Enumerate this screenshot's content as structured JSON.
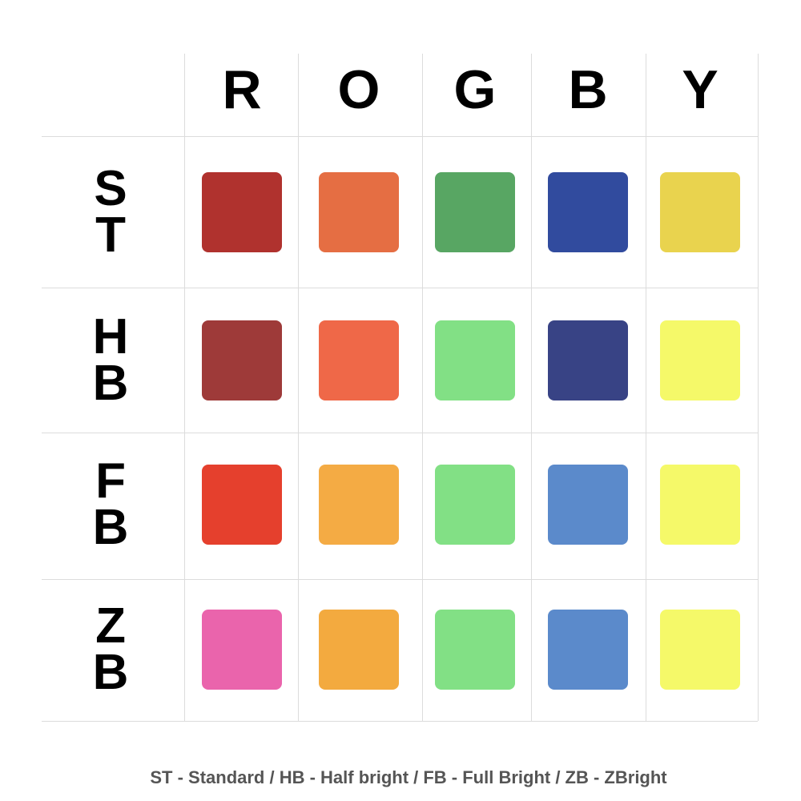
{
  "columns": [
    "R",
    "O",
    "G",
    "B",
    "Y"
  ],
  "rows": [
    {
      "label": "ST",
      "colors": [
        "#b0322e",
        "#e56e43",
        "#58a663",
        "#314b9e",
        "#e9d34e"
      ]
    },
    {
      "label": "HB",
      "colors": [
        "#9e3a39",
        "#ef6848",
        "#82e085",
        "#384385",
        "#f5f969"
      ]
    },
    {
      "label": "FB",
      "colors": [
        "#e5402d",
        "#f4ab44",
        "#82e085",
        "#5b8acb",
        "#f5f969"
      ]
    },
    {
      "label": "ZB",
      "colors": [
        "#ea64ac",
        "#f3aa3f",
        "#82e085",
        "#5b8acb",
        "#f5f969"
      ]
    }
  ],
  "legend": "ST - Standard / HB - Half bright / FB - Full Bright / ZB - ZBright"
}
